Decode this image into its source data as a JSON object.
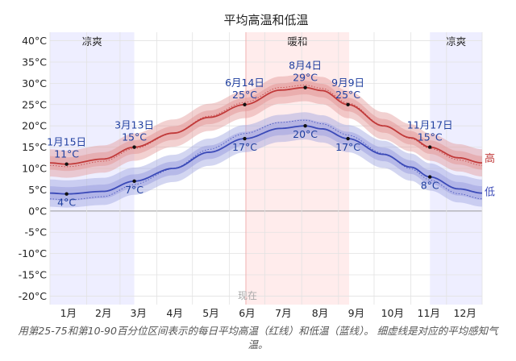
{
  "chart_data": {
    "type": "line",
    "title": "平均高温和低温",
    "xlabel": "",
    "ylabel": "",
    "ylim": [
      -22,
      42
    ],
    "yticks": [
      -20,
      -15,
      -10,
      -5,
      0,
      5,
      10,
      15,
      20,
      25,
      30,
      35,
      40
    ],
    "ytick_labels": [
      "-20°C",
      "-15°C",
      "-10°C",
      "-5°C",
      "0°C",
      "5°C",
      "10°C",
      "15°C",
      "20°C",
      "25°C",
      "30°C",
      "35°C",
      "40°C"
    ],
    "months": [
      "1月",
      "2月",
      "3月",
      "4月",
      "5月",
      "6月",
      "7月",
      "8月",
      "9月",
      "10月",
      "11月",
      "12月"
    ],
    "seasons": [
      {
        "label": "凉爽",
        "start_day": 1,
        "end_day": 72,
        "color": "#eeeeff"
      },
      {
        "label": "暖和",
        "start_day": 166,
        "end_day": 253,
        "color": "#ffecec"
      },
      {
        "label": "凉爽",
        "start_day": 321,
        "end_day": 365,
        "color": "#eeeeff"
      }
    ],
    "series": [
      {
        "name": "高",
        "color": "#c13a3a",
        "band_color": "#e39a9a",
        "points": [
          {
            "day": 1,
            "value": 11.3
          },
          {
            "day": 15,
            "value": 11
          },
          {
            "day": 46,
            "value": 12.2
          },
          {
            "day": 72,
            "value": 15
          },
          {
            "day": 105,
            "value": 18.3
          },
          {
            "day": 135,
            "value": 22
          },
          {
            "day": 165,
            "value": 25
          },
          {
            "day": 195,
            "value": 28.4
          },
          {
            "day": 216,
            "value": 29
          },
          {
            "day": 230,
            "value": 28.3
          },
          {
            "day": 252,
            "value": 25
          },
          {
            "day": 282,
            "value": 20
          },
          {
            "day": 305,
            "value": 17.2
          },
          {
            "day": 321,
            "value": 15
          },
          {
            "day": 345,
            "value": 12.5
          },
          {
            "day": 365,
            "value": 11.3
          }
        ],
        "labeled_points": [
          {
            "day": 15,
            "date": "1月15日",
            "temp": "11°C",
            "value": 11,
            "pos": "above"
          },
          {
            "day": 72,
            "date": "3月13日",
            "temp": "15°C",
            "value": 15,
            "pos": "above"
          },
          {
            "day": 165,
            "date": "6月14日",
            "temp": "25°C",
            "value": 25,
            "pos": "above"
          },
          {
            "day": 216,
            "date": "8月4日",
            "temp": "29°C",
            "value": 29,
            "pos": "above"
          },
          {
            "day": 252,
            "date": "9月9日",
            "temp": "25°C",
            "value": 25,
            "pos": "above"
          },
          {
            "day": 321,
            "date": "11月17日",
            "temp": "15°C",
            "value": 15,
            "pos": "above"
          }
        ]
      },
      {
        "name": "低",
        "color": "#3b4ab8",
        "band_color": "#9ea3e0",
        "points": [
          {
            "day": 1,
            "value": 4.2
          },
          {
            "day": 15,
            "value": 4
          },
          {
            "day": 46,
            "value": 4.6
          },
          {
            "day": 72,
            "value": 7
          },
          {
            "day": 105,
            "value": 10
          },
          {
            "day": 135,
            "value": 13.8
          },
          {
            "day": 165,
            "value": 17
          },
          {
            "day": 195,
            "value": 19.4
          },
          {
            "day": 216,
            "value": 20
          },
          {
            "day": 230,
            "value": 19.3
          },
          {
            "day": 252,
            "value": 17
          },
          {
            "day": 282,
            "value": 13.3
          },
          {
            "day": 305,
            "value": 10.3
          },
          {
            "day": 321,
            "value": 8
          },
          {
            "day": 345,
            "value": 5.2
          },
          {
            "day": 365,
            "value": 4.2
          }
        ],
        "labeled_points": [
          {
            "day": 15,
            "temp": "4°C",
            "value": 4,
            "pos": "below"
          },
          {
            "day": 72,
            "temp": "7°C",
            "value": 7,
            "pos": "below"
          },
          {
            "day": 165,
            "temp": "17°C",
            "value": 17,
            "pos": "below"
          },
          {
            "day": 216,
            "temp": "20°C",
            "value": 20,
            "pos": "below"
          },
          {
            "day": 252,
            "temp": "17°C",
            "value": 17,
            "pos": "below"
          },
          {
            "day": 321,
            "temp": "8°C",
            "value": 8,
            "pos": "below"
          }
        ]
      }
    ],
    "now_label": "现在",
    "now_day": 166,
    "grid": true
  },
  "caption": "用第25-75和第10-90百分位区间表示的每日平均高温（红线）和低温（蓝线）。 细虚线是对应的平均感知气温。"
}
